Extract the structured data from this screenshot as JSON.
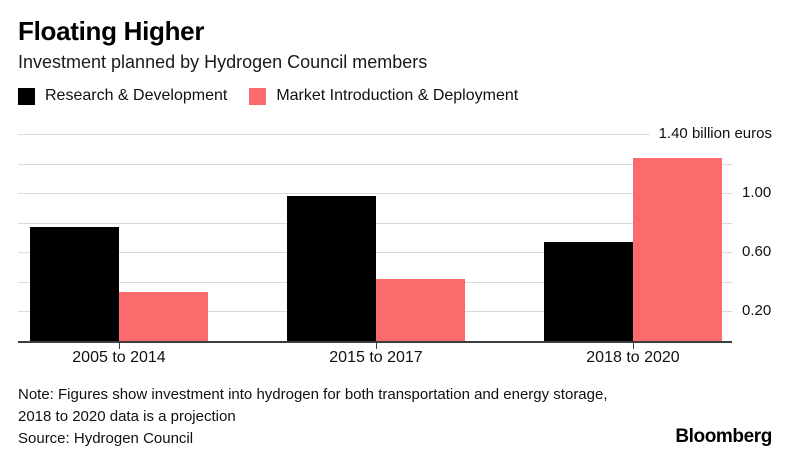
{
  "header": {
    "title": "Floating Higher",
    "subtitle": "Investment planned by Hydrogen Council members"
  },
  "legend": [
    {
      "label": "Research & Development",
      "color": "#000000"
    },
    {
      "label": "Market Introduction & Deployment",
      "color": "#fb6a6c"
    }
  ],
  "chart_data": {
    "type": "bar",
    "title": "Floating Higher",
    "subtitle": "Investment planned by Hydrogen Council members",
    "categories": [
      "2005 to 2014",
      "2015 to 2017",
      "2018 to 2020"
    ],
    "series": [
      {
        "name": "Research & Development",
        "color": "#000000",
        "values": [
          0.77,
          0.98,
          0.67
        ]
      },
      {
        "name": "Market Introduction & Deployment",
        "color": "#fb6a6c",
        "values": [
          0.33,
          0.42,
          1.24
        ]
      }
    ],
    "ylabel": "billion euros",
    "ylim": [
      0,
      1.4
    ],
    "ytick_interval": 0.2,
    "ytick_labels": [
      "0.20",
      "0.60",
      "1.00"
    ],
    "top_tick_label": "1.40 billion euros",
    "grid": true,
    "gridline_color": "#d9d9d9",
    "axis_color": "#3d3d3d",
    "legend_position": "top"
  },
  "footer": {
    "note_line1": "Note: Figures show investment into hydrogen for both transportation and energy storage,",
    "note_line2": "2018 to 2020 data is a projection",
    "source": "Source: Hydrogen Council",
    "brand": "Bloomberg"
  }
}
